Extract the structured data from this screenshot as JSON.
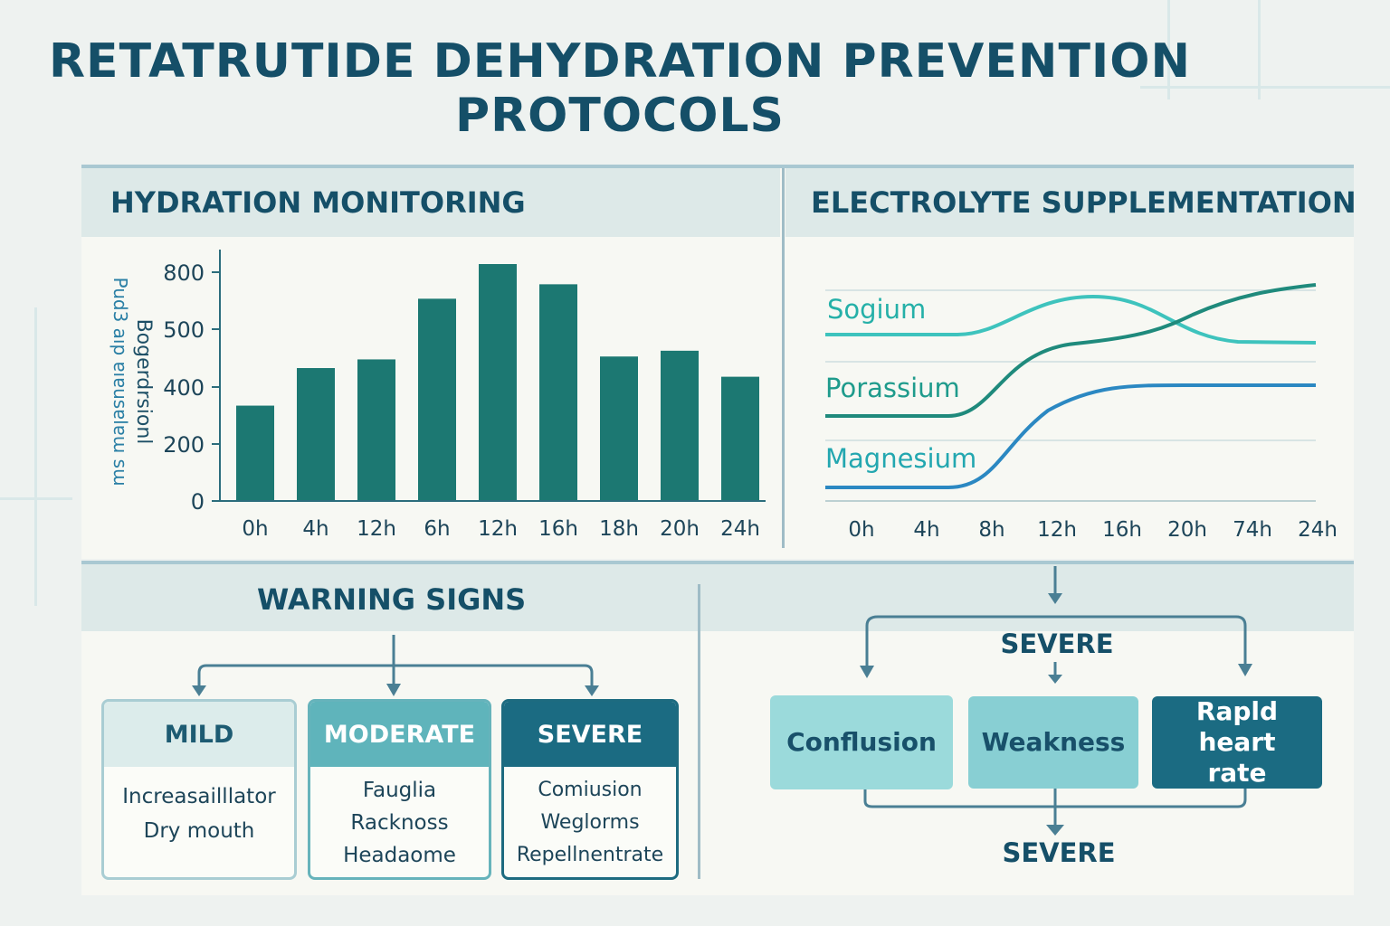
{
  "title": {
    "line1": "RETATRUTIDE DEHYDRATION PREVENTION",
    "line2": "PROTOCOLS"
  },
  "hydration": {
    "title": "HYDRATION MONITORING",
    "y_label_line1": "Pud3 aıp ɐıɐusɐlɐɯ sɯ",
    "y_label_line2": "Bogerdrsionl",
    "chart_data": {
      "type": "bar",
      "categories": [
        "0h",
        "4h",
        "12h",
        "6h",
        "12h",
        "16h",
        "18h",
        "20h",
        "24h"
      ],
      "values": [
        330,
        460,
        490,
        700,
        820,
        750,
        500,
        520,
        430
      ],
      "ytick_labels": [
        "800",
        "500",
        "400",
        "200",
        "0"
      ],
      "bar_color": "#1c7872"
    }
  },
  "electrolyte": {
    "title": "ELECTROLYTE SUPPLEMENTATION",
    "chart_data": {
      "type": "line",
      "x": [
        "0h",
        "4h",
        "8h",
        "12h",
        "16h",
        "20h",
        "74h",
        "24h"
      ],
      "series": [
        {
          "name": "Sogium",
          "color": "#3ec3bd",
          "shape": "rise-then-fall"
        },
        {
          "name": "Porassium",
          "color": "#1f8a7c",
          "shape": "two-step-rise"
        },
        {
          "name": "Magnesium",
          "color": "#2b88c2",
          "shape": "s-curve-rise"
        }
      ]
    }
  },
  "warning": {
    "title": "WARNING SIGNS",
    "cards": [
      {
        "label": "MILD",
        "items": [
          "Increasailllator",
          "Dry mouth"
        ]
      },
      {
        "label": "MODERATE",
        "items": [
          "Fauglia",
          "Racknoss",
          "Headaome"
        ]
      },
      {
        "label": "SEVERE",
        "items": [
          "Comiusion",
          "Weglorms",
          "Repellnentrate"
        ]
      }
    ]
  },
  "severe_flow": {
    "top_label": "SEVERE",
    "bottom_label": "SEVERE",
    "symptoms": [
      "Conflusion",
      "Weakness",
      "Rapld heart rate"
    ]
  },
  "colors": {
    "primary": "#154f68",
    "teal_dark": "#1c7872",
    "teal": "#5fb4bb",
    "teal_light": "#9bdadb"
  }
}
